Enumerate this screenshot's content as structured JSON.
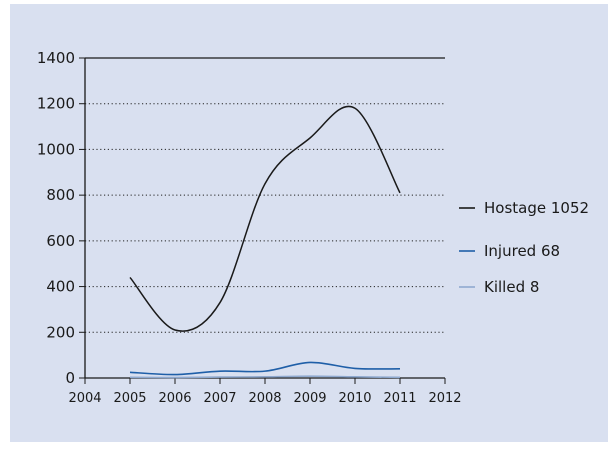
{
  "chart_data": {
    "type": "line",
    "title": "",
    "xlabel": "",
    "ylabel": "",
    "xlim": [
      2004,
      2012
    ],
    "ylim": [
      0,
      1400
    ],
    "x_ticks": [
      2004,
      2005,
      2006,
      2007,
      2008,
      2009,
      2010,
      2011,
      2012
    ],
    "y_ticks": [
      0,
      200,
      400,
      600,
      800,
      1000,
      1200,
      1400
    ],
    "grid": "horizontal dotted",
    "legend_position": "right",
    "series": [
      {
        "name": "Hostage 1052",
        "color": "#1a1a1a",
        "x": [
          2005,
          2006,
          2007,
          2008,
          2009,
          2010,
          2011
        ],
        "y": [
          440,
          210,
          330,
          850,
          1050,
          1180,
          810
        ]
      },
      {
        "name": "Injured 68",
        "color": "#1f5fa8",
        "x": [
          2005,
          2006,
          2007,
          2008,
          2009,
          2010,
          2011
        ],
        "y": [
          25,
          15,
          30,
          30,
          68,
          42,
          40
        ]
      },
      {
        "name": "Killed 8",
        "color": "#8fa9cf",
        "x": [
          2005,
          2006,
          2007,
          2008,
          2009,
          2010,
          2011
        ],
        "y": [
          3,
          2,
          4,
          5,
          8,
          5,
          3
        ]
      }
    ]
  }
}
